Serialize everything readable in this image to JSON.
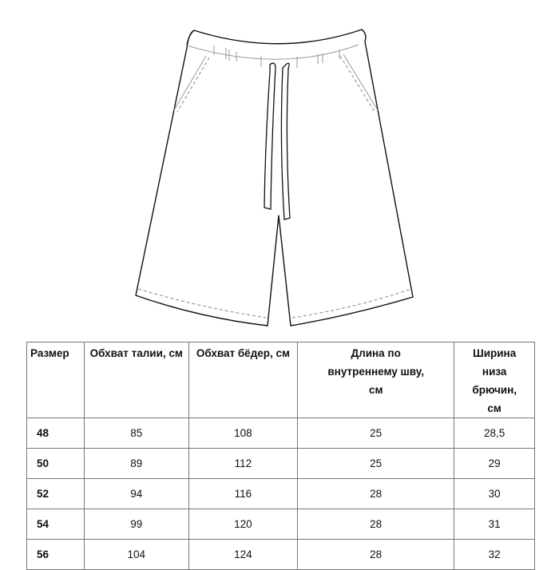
{
  "table": {
    "headers": [
      "Размер",
      "Обхват талии, см",
      "Обхват бёдер, см",
      "Длина по внутреннему шву, см",
      "Ширина низа брючин, см"
    ],
    "rows": [
      [
        "48",
        "85",
        "108",
        "25",
        "28,5"
      ],
      [
        "50",
        "89",
        "112",
        "25",
        "29"
      ],
      [
        "52",
        "94",
        "116",
        "28",
        "30"
      ],
      [
        "54",
        "99",
        "120",
        "28",
        "31"
      ],
      [
        "56",
        "104",
        "124",
        "28",
        "32"
      ]
    ]
  }
}
